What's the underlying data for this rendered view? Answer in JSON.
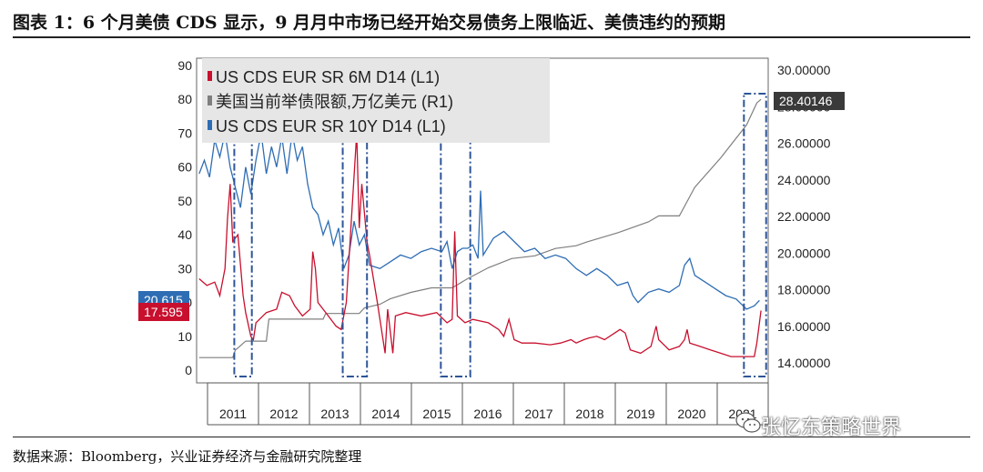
{
  "title": "图表 1：6 个月美债 CDS 显示，9 月月中市场已经开始交易债务上限临近、美债违约的预期",
  "source": "数据来源：Bloomberg，兴业证券经济与金融研究院整理",
  "watermark": "张忆东策略世界",
  "colors": {
    "cds6m": "#c8102e",
    "debt": "#7f7f7f",
    "cds10y": "#2e6db4",
    "box": "#2e5597"
  },
  "chart_data": {
    "type": "line",
    "x_categories": [
      "2011",
      "2012",
      "2013",
      "2014",
      "2015",
      "2016",
      "2017",
      "2018",
      "2019",
      "2020",
      "2021"
    ],
    "y_left": {
      "min": 0,
      "max": 90,
      "ticks": [
        0,
        10,
        20,
        30,
        40,
        50,
        60,
        70,
        80,
        90
      ]
    },
    "y_right": {
      "min": 13.3,
      "max": 30.4,
      "ticks": [
        "14.00000",
        "16.00000",
        "18.00000",
        "20.00000",
        "22.00000",
        "24.00000",
        "26.00000",
        "28.00000",
        "30.00000"
      ]
    },
    "legend_position": "top-left",
    "series": [
      {
        "name": "US CDS EUR SR 6M D14 (L1)",
        "axis": "left",
        "color_key": "cds6m",
        "last_label": "17.595",
        "points": [
          [
            2010.7,
            27
          ],
          [
            2010.85,
            25
          ],
          [
            2011.0,
            26
          ],
          [
            2011.1,
            22
          ],
          [
            2011.2,
            30
          ],
          [
            2011.25,
            45
          ],
          [
            2011.3,
            55
          ],
          [
            2011.35,
            38
          ],
          [
            2011.45,
            40
          ],
          [
            2011.55,
            22
          ],
          [
            2011.6,
            17
          ],
          [
            2011.7,
            10
          ],
          [
            2011.75,
            9
          ],
          [
            2011.8,
            14
          ],
          [
            2012.0,
            17
          ],
          [
            2012.2,
            18
          ],
          [
            2012.3,
            23
          ],
          [
            2012.45,
            22
          ],
          [
            2012.55,
            19
          ],
          [
            2012.7,
            16
          ],
          [
            2012.85,
            18
          ],
          [
            2012.9,
            35
          ],
          [
            2012.95,
            30
          ],
          [
            2013.0,
            20
          ],
          [
            2013.2,
            16
          ],
          [
            2013.35,
            13
          ],
          [
            2013.45,
            12
          ],
          [
            2013.55,
            20
          ],
          [
            2013.75,
            70
          ],
          [
            2013.8,
            42
          ],
          [
            2013.85,
            55
          ],
          [
            2013.95,
            38
          ],
          [
            2014.0,
            34
          ],
          [
            2014.15,
            20
          ],
          [
            2014.3,
            5
          ],
          [
            2014.35,
            18
          ],
          [
            2014.45,
            5
          ],
          [
            2014.5,
            16
          ],
          [
            2014.7,
            17
          ],
          [
            2015.0,
            16
          ],
          [
            2015.3,
            17
          ],
          [
            2015.5,
            14
          ],
          [
            2015.6,
            15
          ],
          [
            2015.65,
            41
          ],
          [
            2015.7,
            16
          ],
          [
            2015.85,
            14
          ],
          [
            2016.0,
            15
          ],
          [
            2016.3,
            14
          ],
          [
            2016.5,
            12
          ],
          [
            2016.6,
            10
          ],
          [
            2016.7,
            15
          ],
          [
            2016.8,
            9
          ],
          [
            2016.95,
            8
          ],
          [
            2017.2,
            8
          ],
          [
            2017.5,
            7.5
          ],
          [
            2017.7,
            8
          ],
          [
            2017.9,
            9
          ],
          [
            2018.0,
            8
          ],
          [
            2018.15,
            9
          ],
          [
            2018.25,
            9.5
          ],
          [
            2018.4,
            10
          ],
          [
            2018.55,
            9
          ],
          [
            2018.75,
            11
          ],
          [
            2018.85,
            12
          ],
          [
            2018.95,
            11
          ],
          [
            2019.05,
            6
          ],
          [
            2019.25,
            5
          ],
          [
            2019.45,
            7
          ],
          [
            2019.55,
            13
          ],
          [
            2019.6,
            9
          ],
          [
            2019.8,
            6
          ],
          [
            2020.0,
            7
          ],
          [
            2020.1,
            9
          ],
          [
            2020.15,
            12
          ],
          [
            2020.2,
            8
          ],
          [
            2020.4,
            7
          ],
          [
            2020.6,
            6
          ],
          [
            2020.8,
            5
          ],
          [
            2021.0,
            4
          ],
          [
            2021.3,
            4
          ],
          [
            2021.45,
            4
          ],
          [
            2021.5,
            8
          ],
          [
            2021.58,
            17.6
          ]
        ]
      },
      {
        "name": "美国当前举债限额,万亿美元 (R1)",
        "axis": "right",
        "color_key": "debt",
        "last_label": "28.40146",
        "points": [
          [
            2010.7,
            14.29
          ],
          [
            2011.35,
            14.29
          ],
          [
            2011.4,
            14.69
          ],
          [
            2011.6,
            15.19
          ],
          [
            2012.0,
            15.19
          ],
          [
            2012.05,
            16.39
          ],
          [
            2013.1,
            16.39
          ],
          [
            2013.15,
            16.7
          ],
          [
            2013.8,
            16.7
          ],
          [
            2013.9,
            17.0
          ],
          [
            2014.2,
            17.2
          ],
          [
            2014.4,
            17.5
          ],
          [
            2014.8,
            17.85
          ],
          [
            2015.2,
            18.1
          ],
          [
            2015.5,
            18.1
          ],
          [
            2015.6,
            18.1
          ],
          [
            2015.9,
            18.6
          ],
          [
            2016.3,
            19.2
          ],
          [
            2016.75,
            19.7
          ],
          [
            2017.2,
            19.85
          ],
          [
            2017.6,
            20.25
          ],
          [
            2018.0,
            20.4
          ],
          [
            2018.2,
            20.6
          ],
          [
            2018.8,
            21.1
          ],
          [
            2019.4,
            21.7
          ],
          [
            2019.6,
            22.03
          ],
          [
            2020.0,
            22.03
          ],
          [
            2020.3,
            23.6
          ],
          [
            2020.8,
            25.2
          ],
          [
            2021.3,
            27.0
          ],
          [
            2021.5,
            28.2
          ],
          [
            2021.58,
            28.4
          ]
        ]
      },
      {
        "name": "US CDS EUR SR 10Y D14 (L1)",
        "axis": "left",
        "color_key": "cds10y",
        "last_label": "20.615",
        "points": [
          [
            2010.7,
            58
          ],
          [
            2010.8,
            62
          ],
          [
            2010.9,
            57
          ],
          [
            2011.0,
            68
          ],
          [
            2011.1,
            63
          ],
          [
            2011.2,
            70
          ],
          [
            2011.3,
            60
          ],
          [
            2011.4,
            54
          ],
          [
            2011.5,
            48
          ],
          [
            2011.6,
            60
          ],
          [
            2011.7,
            52
          ],
          [
            2011.8,
            62
          ],
          [
            2011.9,
            70
          ],
          [
            2012.0,
            58
          ],
          [
            2012.1,
            66
          ],
          [
            2012.2,
            60
          ],
          [
            2012.3,
            69
          ],
          [
            2012.4,
            58
          ],
          [
            2012.5,
            70
          ],
          [
            2012.6,
            62
          ],
          [
            2012.7,
            66
          ],
          [
            2012.8,
            55
          ],
          [
            2012.9,
            48
          ],
          [
            2013.0,
            46
          ],
          [
            2013.1,
            40
          ],
          [
            2013.2,
            44
          ],
          [
            2013.3,
            37
          ],
          [
            2013.4,
            42
          ],
          [
            2013.5,
            30
          ],
          [
            2013.6,
            34
          ],
          [
            2013.7,
            44
          ],
          [
            2013.8,
            37
          ],
          [
            2013.9,
            40
          ],
          [
            2014.0,
            31
          ],
          [
            2014.2,
            30
          ],
          [
            2014.4,
            32
          ],
          [
            2014.6,
            34
          ],
          [
            2014.8,
            33
          ],
          [
            2015.0,
            35
          ],
          [
            2015.2,
            36
          ],
          [
            2015.4,
            35
          ],
          [
            2015.5,
            38
          ],
          [
            2015.6,
            30
          ],
          [
            2015.7,
            35
          ],
          [
            2015.8,
            36
          ],
          [
            2015.9,
            36
          ],
          [
            2016.0,
            37
          ],
          [
            2016.1,
            33
          ],
          [
            2016.15,
            53
          ],
          [
            2016.2,
            34
          ],
          [
            2016.4,
            39
          ],
          [
            2016.6,
            41
          ],
          [
            2016.8,
            38
          ],
          [
            2017.0,
            35
          ],
          [
            2017.2,
            36
          ],
          [
            2017.4,
            33
          ],
          [
            2017.6,
            34
          ],
          [
            2017.8,
            33
          ],
          [
            2018.0,
            30
          ],
          [
            2018.2,
            28
          ],
          [
            2018.4,
            30
          ],
          [
            2018.6,
            28
          ],
          [
            2018.8,
            25
          ],
          [
            2019.0,
            26
          ],
          [
            2019.1,
            22
          ],
          [
            2019.2,
            20
          ],
          [
            2019.4,
            23
          ],
          [
            2019.6,
            24
          ],
          [
            2019.8,
            23
          ],
          [
            2020.0,
            25
          ],
          [
            2020.1,
            31
          ],
          [
            2020.2,
            33
          ],
          [
            2020.3,
            28
          ],
          [
            2020.5,
            26
          ],
          [
            2020.7,
            24
          ],
          [
            2020.9,
            22
          ],
          [
            2021.1,
            21
          ],
          [
            2021.3,
            18
          ],
          [
            2021.45,
            19
          ],
          [
            2021.55,
            20.6
          ]
        ]
      }
    ]
  }
}
